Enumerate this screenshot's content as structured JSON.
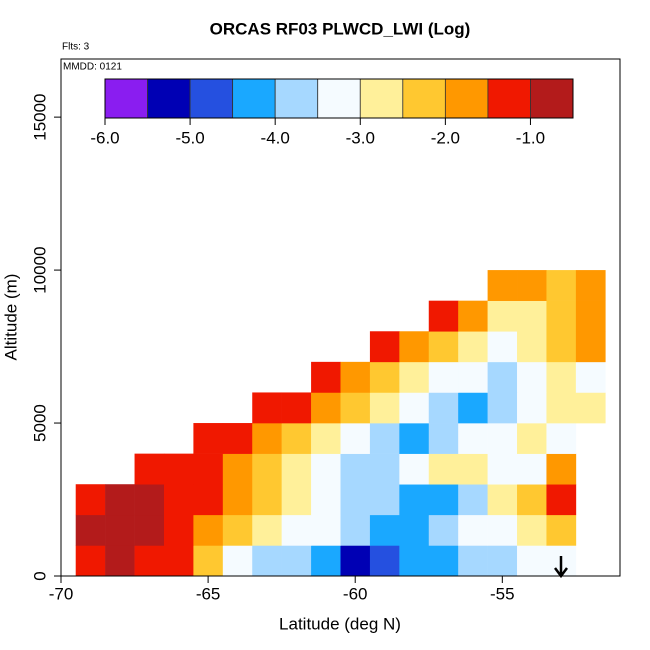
{
  "chart_data": {
    "type": "heatmap",
    "title": "ORCAS RF03 PLWCD_LWI (Log)",
    "subtitle": "Flts: 3",
    "annotation": "MMDD: 0121",
    "x_label": "Latitude (deg N)",
    "y_label": "Altitude (m)",
    "xlim": [
      -70,
      -51
    ],
    "ylim": [
      0,
      16900
    ],
    "xticks": [
      -70,
      -65,
      -60,
      -55
    ],
    "yticks": [
      0,
      5000,
      10000,
      15000
    ],
    "xbins": [
      -69.5,
      -68.5,
      -67.5,
      -66.5,
      -65.5,
      -64.5,
      -63.5,
      -62.5,
      -61.5,
      -60.5,
      -59.5,
      -58.5,
      -57.5,
      -56.5,
      -55.5,
      -54.5,
      -53.5,
      -52.5,
      -51.5
    ],
    "ybins": [
      0,
      1000,
      2000,
      3000,
      4000,
      5000,
      6000,
      7000,
      8000,
      9000,
      10000
    ],
    "z": [
      [
        -1.2,
        -1.0,
        -1.2,
        -1.5,
        -2.5,
        -3.5,
        -3.8,
        -4.0,
        -4.5,
        -5.2,
        -5.0,
        -4.5,
        -4.2,
        -4.0,
        -3.8,
        -3.5,
        -3.2,
        null
      ],
      [
        -1.0,
        -1.0,
        -1.0,
        -1.2,
        -1.8,
        -2.5,
        -3.0,
        -3.3,
        -3.5,
        -4.0,
        -4.2,
        -4.2,
        -3.8,
        -3.5,
        -3.2,
        -2.8,
        -2.2,
        null
      ],
      [
        -1.2,
        -1.0,
        -1.0,
        -1.1,
        -1.3,
        -1.8,
        -2.5,
        -3.0,
        -3.3,
        -3.6,
        -3.8,
        -4.2,
        -4.3,
        -3.8,
        -3.0,
        -2.5,
        -1.2,
        null
      ],
      [
        null,
        null,
        -1.5,
        -1.2,
        -1.3,
        -1.8,
        -2.2,
        -2.8,
        -3.3,
        -3.8,
        -4.0,
        -3.5,
        -3.0,
        -2.8,
        -3.2,
        -3.5,
        -2.0,
        null
      ],
      [
        null,
        null,
        null,
        null,
        -1.3,
        -1.5,
        -1.8,
        -2.3,
        -2.8,
        -3.3,
        -3.8,
        -4.2,
        -4.0,
        -3.5,
        -3.2,
        -2.8,
        -3.5,
        null
      ],
      [
        null,
        null,
        null,
        null,
        null,
        null,
        -1.2,
        -1.5,
        -2.0,
        -2.5,
        -3.0,
        -3.5,
        -3.8,
        -4.2,
        -3.8,
        -3.3,
        -3.0,
        -2.8
      ],
      [
        null,
        null,
        null,
        null,
        null,
        null,
        null,
        null,
        -1.3,
        -1.6,
        -2.2,
        -2.8,
        -3.2,
        -3.5,
        -3.6,
        -3.3,
        -3.0,
        -3.2
      ],
      [
        null,
        null,
        null,
        null,
        null,
        null,
        null,
        null,
        null,
        null,
        -1.4,
        -1.8,
        -2.3,
        -2.8,
        -3.1,
        -3.0,
        -2.3,
        -2.0
      ],
      [
        null,
        null,
        null,
        null,
        null,
        null,
        null,
        null,
        null,
        null,
        null,
        null,
        -1.5,
        -2.0,
        -2.6,
        -2.8,
        -2.2,
        -1.8
      ],
      [
        null,
        null,
        null,
        null,
        null,
        null,
        null,
        null,
        null,
        null,
        null,
        null,
        null,
        null,
        -1.6,
        -2.0,
        -2.4,
        -1.7
      ]
    ],
    "colorbar": {
      "lim": [
        -6,
        -0.5
      ],
      "ticks": [
        {
          "value": -6,
          "label": "-6.0"
        },
        {
          "value": -5,
          "label": "-5.0"
        },
        {
          "value": -4,
          "label": "-4.0"
        },
        {
          "value": -3,
          "label": "-3.0"
        },
        {
          "value": -2,
          "label": "-2.0"
        },
        {
          "value": -1,
          "label": "-1.0"
        }
      ],
      "colors": [
        "#8a1df0",
        "#0000b4",
        "#2550e0",
        "#1aa8ff",
        "#a6d8ff",
        "#f5fbff",
        "#fff09a",
        "#ffc830",
        "#ff9800",
        "#f01800",
        "#b31b1b"
      ]
    }
  }
}
